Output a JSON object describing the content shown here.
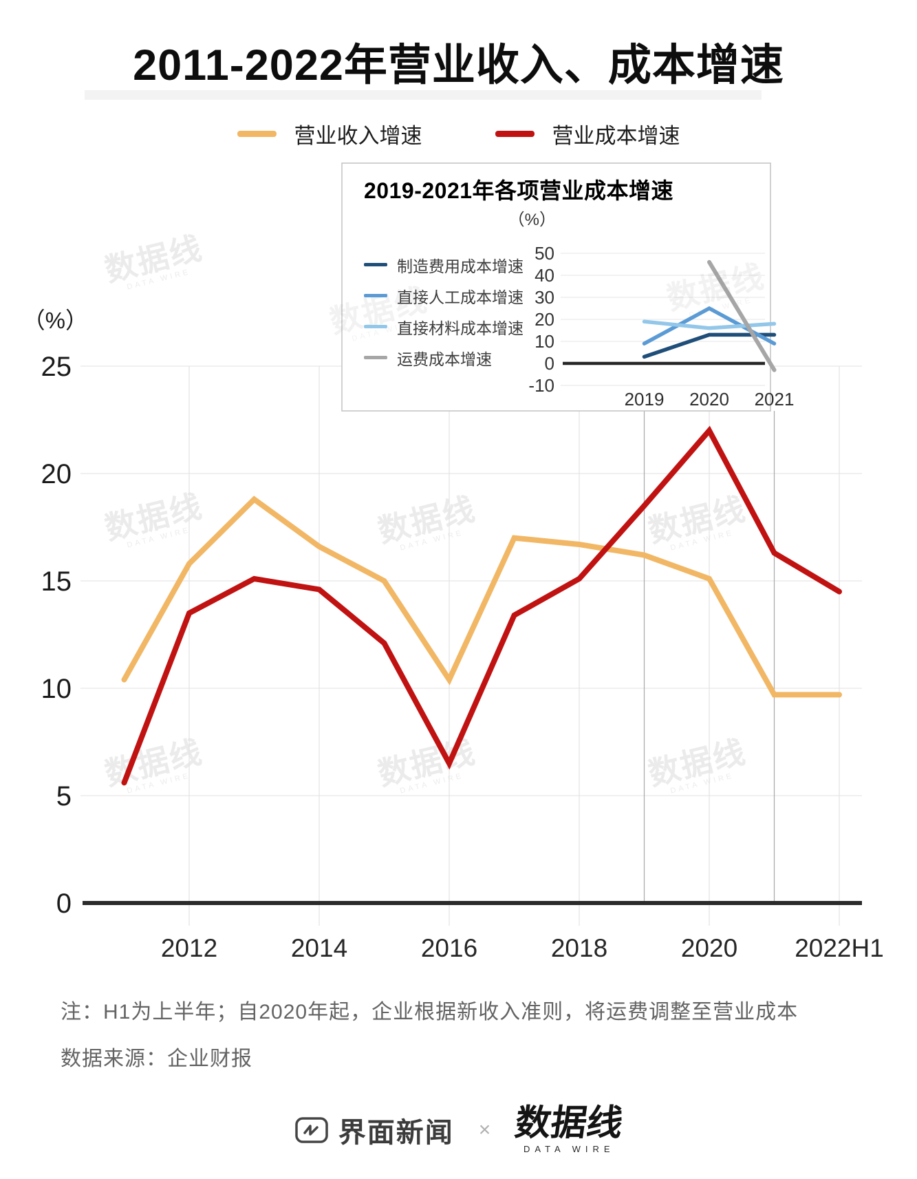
{
  "title": "2011-2022年营业收入、成本增速",
  "legend": {
    "revenue": "营业收入增速",
    "cost": "营业成本增速"
  },
  "colors": {
    "revenue": "#F1B765",
    "cost": "#C11212",
    "manufacturing": "#1F4E79",
    "labor": "#5B9BD5",
    "materials": "#93C7EA",
    "freight": "#A6A6A6",
    "axis": "#2B2B2B",
    "grid": "#EBEBEB",
    "connector": "#A8A8A8"
  },
  "chart_data": [
    {
      "name": "main",
      "type": "line",
      "title": "2011-2022年营业收入、成本增速",
      "unit_label": "（%）",
      "categories": [
        "2011",
        "2012",
        "2013",
        "2014",
        "2015",
        "2016",
        "2017",
        "2018",
        "2019",
        "2020",
        "2021",
        "2022H1"
      ],
      "x_tick_labels": [
        "2012",
        "2014",
        "2016",
        "2018",
        "2020",
        "2022H1"
      ],
      "yticks": [
        0,
        5,
        10,
        15,
        20,
        25
      ],
      "ylim": [
        0,
        25
      ],
      "grid": true,
      "legend_position": "top",
      "series": [
        {
          "name": "营业收入增速",
          "color_key": "revenue",
          "values": [
            10.4,
            15.8,
            18.8,
            16.6,
            15.0,
            10.4,
            17.0,
            16.7,
            16.2,
            15.1,
            9.7,
            9.7
          ]
        },
        {
          "name": "营业成本增速",
          "color_key": "cost",
          "values": [
            5.6,
            13.5,
            15.1,
            14.6,
            12.1,
            6.5,
            13.4,
            15.1,
            18.5,
            22.0,
            16.3,
            14.5
          ]
        }
      ]
    },
    {
      "name": "inset",
      "type": "line",
      "title": "2019-2021年各项营业成本增速",
      "unit_label": "（%）",
      "categories": [
        "2019",
        "2020",
        "2021"
      ],
      "yticks": [
        -10,
        0,
        10,
        20,
        30,
        40,
        50
      ],
      "ylim": [
        -10,
        50
      ],
      "grid": true,
      "legend_position": "left",
      "linked_years": [
        "2019",
        "2021"
      ],
      "series": [
        {
          "name": "制造费用成本增速",
          "color_key": "manufacturing",
          "values": [
            3,
            13,
            13
          ]
        },
        {
          "name": "直接人工成本增速",
          "color_key": "labor",
          "values": [
            9,
            25,
            9
          ]
        },
        {
          "name": "直接材料成本增速",
          "color_key": "materials",
          "values": [
            19,
            16,
            18
          ]
        },
        {
          "name": "运费成本增速",
          "color_key": "freight",
          "values": [
            null,
            46,
            -3
          ]
        }
      ]
    }
  ],
  "notes": {
    "line1": "注：H1为上半年；自2020年起，企业根据新收入准则，将运费调整至营业成本",
    "line2": "数据来源：企业财报"
  },
  "footer": {
    "jiemian": "界面新闻",
    "separator": "×",
    "datawire_cn": "数据线",
    "datawire_en": "DATA WIRE"
  },
  "watermark": {
    "cn": "数据线",
    "en": "DATA WIRE"
  }
}
